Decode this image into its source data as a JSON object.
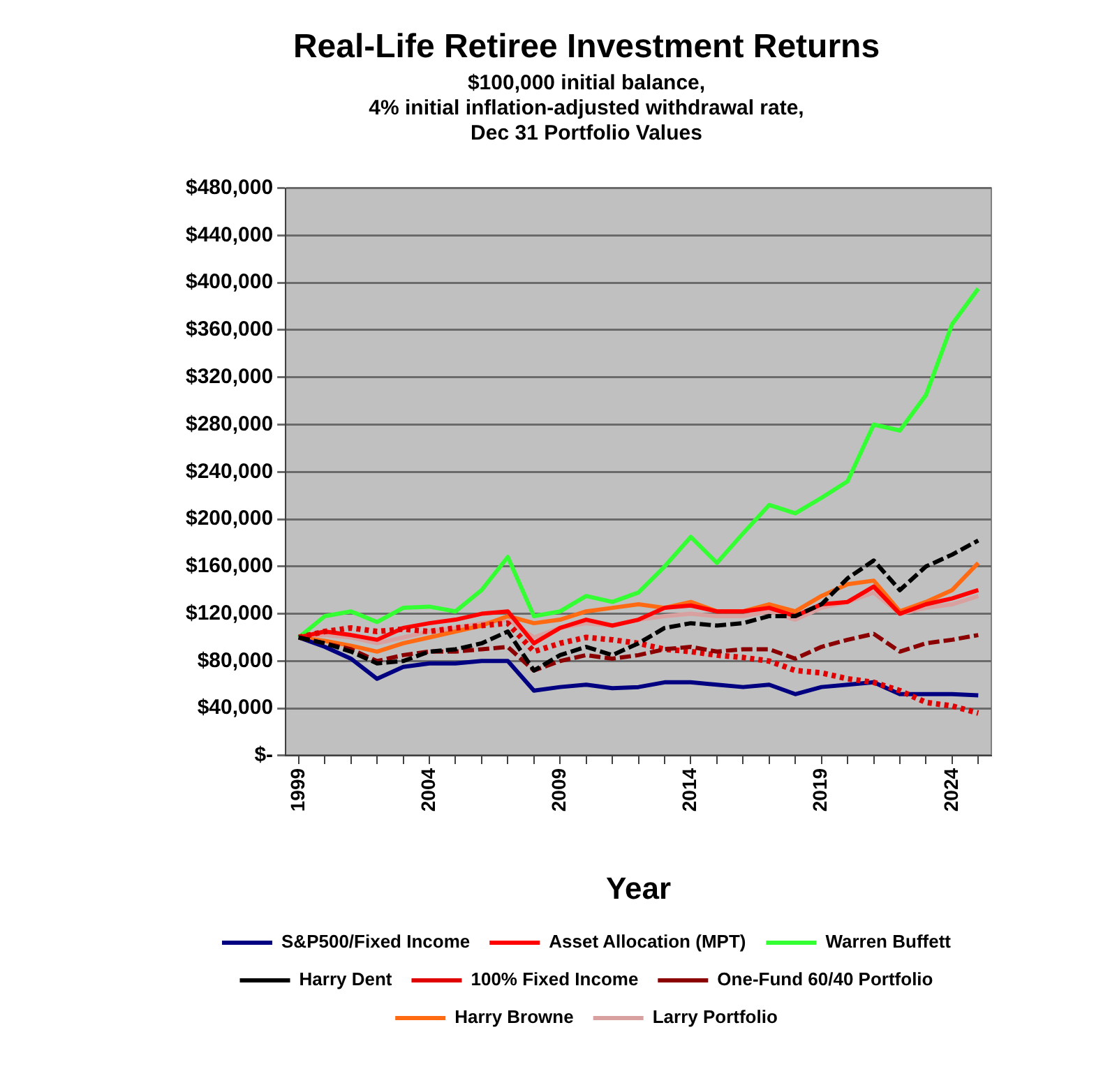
{
  "chart_data": {
    "type": "line",
    "title": "Real-Life Retiree Investment Returns",
    "subtitle": "$100,000 initial balance,\n4% initial inflation-adjusted withdrawal rate,\nDec 31 Portfolio Values",
    "xlabel": "Year",
    "x": [
      1999,
      2000,
      2001,
      2002,
      2003,
      2004,
      2005,
      2006,
      2007,
      2008,
      2009,
      2010,
      2011,
      2012,
      2013,
      2014,
      2015,
      2016,
      2017,
      2018,
      2019,
      2020,
      2021,
      2022,
      2023,
      2024,
      2025
    ],
    "xlim": [
      1998.5,
      2025.5
    ],
    "xticks": [
      1999,
      {
        "value": 2000,
        "label": null
      },
      {
        "value": 2001,
        "label": null
      },
      {
        "value": 2002,
        "label": null
      },
      {
        "value": 2003,
        "label": null
      },
      2004,
      {
        "value": 2005,
        "label": null
      },
      {
        "value": 2006,
        "label": null
      },
      {
        "value": 2007,
        "label": null
      },
      {
        "value": 2008,
        "label": null
      },
      2009,
      {
        "value": 2010,
        "label": null
      },
      {
        "value": 2011,
        "label": null
      },
      {
        "value": 2012,
        "label": null
      },
      {
        "value": 2013,
        "label": null
      },
      2014,
      {
        "value": 2015,
        "label": null
      },
      {
        "value": 2016,
        "label": null
      },
      {
        "value": 2017,
        "label": null
      },
      {
        "value": 2018,
        "label": null
      },
      2019,
      {
        "value": 2020,
        "label": null
      },
      {
        "value": 2021,
        "label": null
      },
      {
        "value": 2022,
        "label": null
      },
      {
        "value": 2023,
        "label": null
      },
      2024,
      {
        "value": 2025,
        "label": null
      }
    ],
    "ylim": [
      0,
      480000
    ],
    "yticks": [
      {
        "value": 0,
        "label": "$-"
      },
      {
        "value": 40000,
        "label": "$40,000"
      },
      {
        "value": 80000,
        "label": "$80,000"
      },
      {
        "value": 120000,
        "label": "$120,000"
      },
      {
        "value": 160000,
        "label": "$160,000"
      },
      {
        "value": 200000,
        "label": "$200,000"
      },
      {
        "value": 240000,
        "label": "$240,000"
      },
      {
        "value": 280000,
        "label": "$280,000"
      },
      {
        "value": 320000,
        "label": "$320,000"
      },
      {
        "value": 360000,
        "label": "$360,000"
      },
      {
        "value": 400000,
        "label": "$400,000"
      },
      {
        "value": 440000,
        "label": "$440,000"
      },
      {
        "value": 480000,
        "label": "$480,000"
      }
    ],
    "grid": "y",
    "legend": "bottom",
    "marker": "none",
    "series": [
      {
        "name": "S&P500/Fixed Income",
        "color": "#000080",
        "line_style": "solid",
        "values": [
          100000,
          92000,
          82000,
          65000,
          75000,
          78000,
          78000,
          80000,
          80000,
          55000,
          58000,
          60000,
          57000,
          58000,
          62000,
          62000,
          60000,
          58000,
          60000,
          52000,
          58000,
          60000,
          62000,
          52000,
          52000,
          52000,
          51000
        ]
      },
      {
        "name": "Asset Allocation (MPT)",
        "color": "#ff0000",
        "line_style": "solid",
        "values": [
          100000,
          105000,
          102000,
          98000,
          108000,
          112000,
          115000,
          120000,
          122000,
          95000,
          108000,
          115000,
          110000,
          115000,
          125000,
          127000,
          122000,
          122000,
          125000,
          118000,
          128000,
          130000,
          143000,
          120000,
          128000,
          133000,
          140000
        ]
      },
      {
        "name": "Warren Buffett",
        "color": "#33ff33",
        "line_style": "solid",
        "values": [
          100000,
          118000,
          122000,
          113000,
          125000,
          126000,
          122000,
          140000,
          168000,
          118000,
          122000,
          135000,
          130000,
          138000,
          160000,
          185000,
          163000,
          188000,
          212000,
          205000,
          218000,
          232000,
          280000,
          275000,
          305000,
          365000,
          395000
        ]
      },
      {
        "name": "Harry Dent",
        "color": "#000000",
        "line_style": "dashed",
        "values": [
          100000,
          95000,
          88000,
          78000,
          80000,
          88000,
          90000,
          95000,
          105000,
          72000,
          85000,
          92000,
          85000,
          95000,
          108000,
          112000,
          110000,
          112000,
          118000,
          118000,
          128000,
          150000,
          165000,
          140000,
          160000,
          170000,
          182000
        ]
      },
      {
        "name": "100% Fixed Income",
        "color": "#e00000",
        "line_style": "dotted",
        "values": [
          100000,
          105000,
          108000,
          105000,
          107000,
          105000,
          108000,
          110000,
          112000,
          88000,
          95000,
          100000,
          98000,
          95000,
          90000,
          88000,
          85000,
          83000,
          80000,
          72000,
          70000,
          65000,
          62000,
          55000,
          45000,
          42000,
          36000
        ]
      },
      {
        "name": "One-Fund 60/40 Portfolio",
        "color": "#8b0000",
        "line_style": "dashed",
        "values": [
          100000,
          95000,
          90000,
          80000,
          85000,
          88000,
          88000,
          90000,
          92000,
          72000,
          80000,
          85000,
          82000,
          85000,
          90000,
          92000,
          88000,
          90000,
          90000,
          82000,
          92000,
          98000,
          103000,
          88000,
          95000,
          98000,
          102000
        ]
      },
      {
        "name": "Harry Browne",
        "color": "#ff6a13",
        "line_style": "solid",
        "values": [
          100000,
          97000,
          93000,
          88000,
          95000,
          100000,
          105000,
          110000,
          118000,
          112000,
          115000,
          122000,
          125000,
          128000,
          125000,
          130000,
          122000,
          122000,
          128000,
          122000,
          135000,
          145000,
          148000,
          122000,
          130000,
          140000,
          163000
        ]
      },
      {
        "name": "Larry Portfolio",
        "color": "#d9a0a0",
        "line_style": "solid",
        "values": [
          100000,
          102000,
          100000,
          95000,
          100000,
          105000,
          108000,
          112000,
          115000,
          100000,
          108000,
          112000,
          110000,
          115000,
          118000,
          120000,
          118000,
          118000,
          122000,
          115000,
          125000,
          130000,
          138000,
          120000,
          125000,
          128000,
          135000
        ]
      }
    ]
  }
}
